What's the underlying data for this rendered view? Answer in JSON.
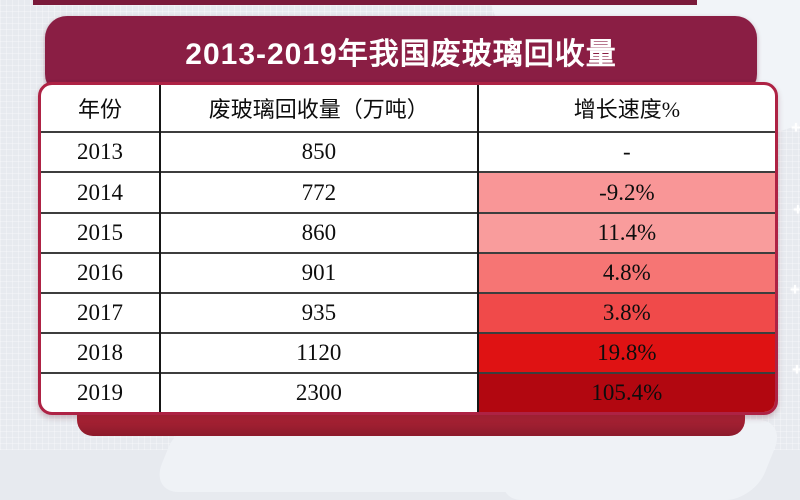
{
  "title_bar": {
    "title": "2013-2019年我国废玻璃回收量"
  },
  "chart_data": {
    "type": "table",
    "title": "2013-2019年我国废玻璃回收量",
    "columns": [
      "年份",
      "废玻璃回收量（万吨）",
      "增长速度%"
    ],
    "rows": [
      {
        "year": "2013",
        "volume": "850",
        "growth": "-",
        "growth_bg": "#FFFFFF"
      },
      {
        "year": "2014",
        "volume": "772",
        "growth": "-9.2%",
        "growth_bg": "#F99697"
      },
      {
        "year": "2015",
        "volume": "860",
        "growth": "11.4%",
        "growth_bg": "#F99C9C"
      },
      {
        "year": "2016",
        "volume": "901",
        "growth": "4.8%",
        "growth_bg": "#F67574"
      },
      {
        "year": "2017",
        "volume": "935",
        "growth": "3.8%",
        "growth_bg": "#F04A4A"
      },
      {
        "year": "2018",
        "volume": "1120",
        "growth": "19.8%",
        "growth_bg": "#DF1213"
      },
      {
        "year": "2019",
        "volume": "2300",
        "growth": "105.4%",
        "growth_bg": "#B20710"
      }
    ],
    "years": [
      2013,
      2014,
      2015,
      2016,
      2017,
      2018,
      2019
    ],
    "volumes_wan_tons": [
      850,
      772,
      860,
      901,
      935,
      1120,
      2300
    ],
    "growth_pct": [
      null,
      -9.2,
      11.4,
      4.8,
      3.8,
      19.8,
      105.4
    ]
  },
  "colors": {
    "background": "#E7EAEF",
    "banner": "#8A1E44",
    "top_strip": "#7A1A3A",
    "card_border": "#AE2244",
    "bottom_bar": "#A82234",
    "growth_scale": [
      "#F99697",
      "#F99C9C",
      "#F67574",
      "#F04A4A",
      "#DF1213",
      "#B20710"
    ]
  },
  "decor": {
    "sparkle_glyph": "+"
  }
}
